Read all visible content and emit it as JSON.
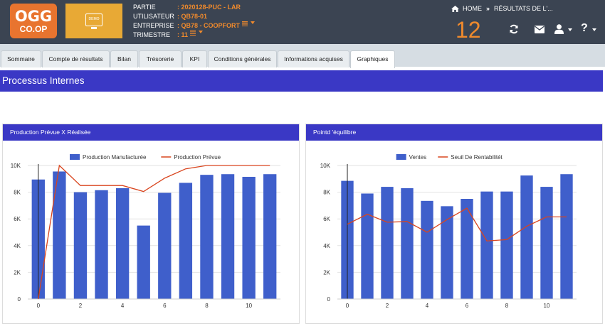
{
  "header": {
    "logo": {
      "line1": "OGG",
      "line2": "CO.OP"
    },
    "demo_label": "DEMO",
    "info": [
      {
        "label": "PARTIE",
        "value": ": 2020128-PUC - LAR"
      },
      {
        "label": "UTILISATEUR",
        "value": ": QB78-01"
      },
      {
        "label": "ENTREPRISE",
        "value": ": QB78 - COOPFORT"
      },
      {
        "label": "TRIMESTRE",
        "value": ": 11"
      }
    ],
    "breadcrumb": {
      "home": "HOME",
      "separator": "»",
      "current": "RÉSULTATS DE L'..."
    },
    "counter": "12",
    "help_glyph": "?",
    "accent": "#f08a2c",
    "bg": "#3b4452"
  },
  "tabs": [
    {
      "label": "Sommaire"
    },
    {
      "label": "Compte de résultats"
    },
    {
      "label": "Bilan"
    },
    {
      "label": "Trésorerie"
    },
    {
      "label": "KPI"
    },
    {
      "label": "Conditions générales"
    },
    {
      "label": "Informations acquises"
    },
    {
      "label": "Graphiques",
      "active": true
    }
  ],
  "page_title": "Processus Internes",
  "panels": [
    {
      "title": "Production Prévue X Réalisée"
    },
    {
      "title": "Pointd 'équilibre"
    }
  ],
  "chart_data": [
    {
      "type": "bar",
      "x": [
        0,
        1,
        2,
        3,
        4,
        5,
        6,
        7,
        8,
        9,
        10,
        11
      ],
      "series": [
        {
          "name": "Production Manufacturée",
          "type": "bar",
          "color": "#3f5fcb",
          "values": [
            8950,
            9550,
            8000,
            8150,
            8300,
            5500,
            7950,
            8700,
            9300,
            9350,
            9150,
            9350
          ]
        },
        {
          "name": "Production Prévue",
          "type": "line",
          "color": "#d9451e",
          "values": [
            0,
            10000,
            8500,
            8500,
            8500,
            8050,
            9050,
            9750,
            10000,
            10000,
            10000,
            10000
          ]
        }
      ],
      "ylim": [
        0,
        10000
      ],
      "yticks": [
        "0",
        "2K",
        "4K",
        "6K",
        "8K",
        "10K"
      ],
      "xticks": [
        "0",
        "2",
        "4",
        "6",
        "8",
        "10"
      ],
      "grid": true,
      "legend": "top-center"
    },
    {
      "type": "bar",
      "x": [
        0,
        1,
        2,
        3,
        4,
        5,
        6,
        7,
        8,
        9,
        10,
        11
      ],
      "series": [
        {
          "name": "Ventes",
          "type": "bar",
          "color": "#3f5fcb",
          "values": [
            8850,
            7900,
            8400,
            8300,
            7350,
            6950,
            7500,
            8050,
            8050,
            9250,
            8400,
            9350
          ]
        },
        {
          "name": "Seuil De Rentabilitét",
          "type": "line",
          "color": "#d9451e",
          "values": [
            5600,
            6350,
            5750,
            5800,
            5000,
            5950,
            6800,
            4350,
            4450,
            5450,
            6150,
            6150
          ]
        }
      ],
      "ylim": [
        0,
        10000
      ],
      "yticks": [
        "0",
        "2K",
        "4K",
        "6K",
        "8K",
        "10K"
      ],
      "xticks": [
        "0",
        "2",
        "4",
        "6",
        "8",
        "10"
      ],
      "grid": true,
      "legend": "top-center"
    }
  ]
}
